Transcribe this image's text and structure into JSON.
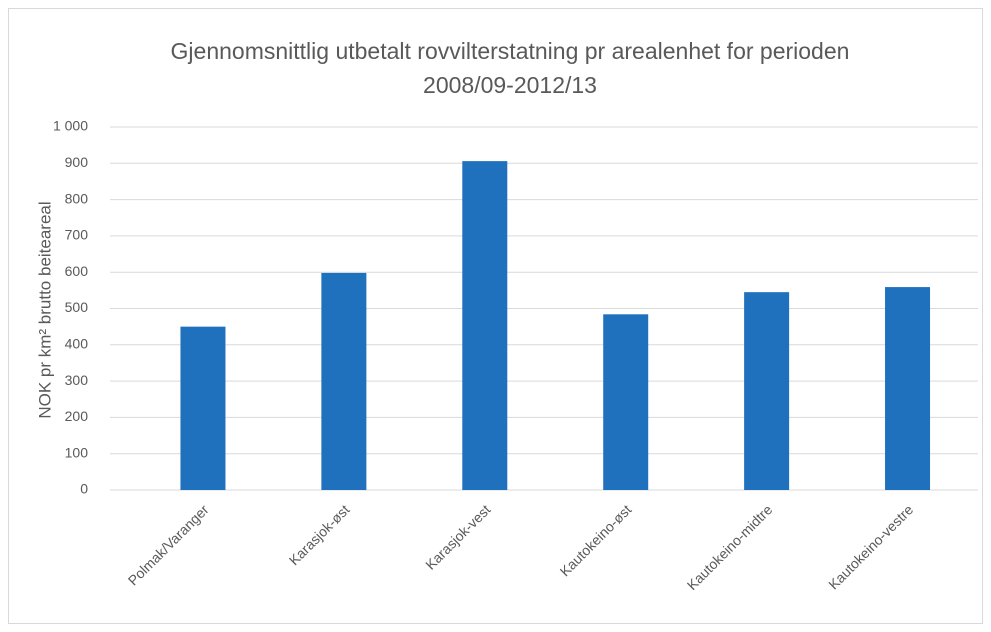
{
  "chart_data": {
    "type": "bar",
    "title": "Gjennomsnittlig utbetalt rovvilterstatning pr arealenhet for perioden 2008/09-2012/13",
    "y_label": "NOK pr km² brutto beiteareal",
    "categories": [
      "Polmak/Varanger",
      "Karasjok-øst",
      "Karasjok-vest",
      "Kautokeino-øst",
      "Kautokeino-midtre",
      "Kautokeino-vestre"
    ],
    "values": [
      450,
      598,
      906,
      484,
      545,
      559
    ],
    "color": "#1f70bd",
    "ylim": [
      0,
      1000
    ],
    "yticks": [
      0,
      100,
      200,
      300,
      400,
      500,
      600,
      700,
      800,
      900,
      {
        "value": 1000,
        "label": "1 000"
      }
    ],
    "grid": true
  }
}
